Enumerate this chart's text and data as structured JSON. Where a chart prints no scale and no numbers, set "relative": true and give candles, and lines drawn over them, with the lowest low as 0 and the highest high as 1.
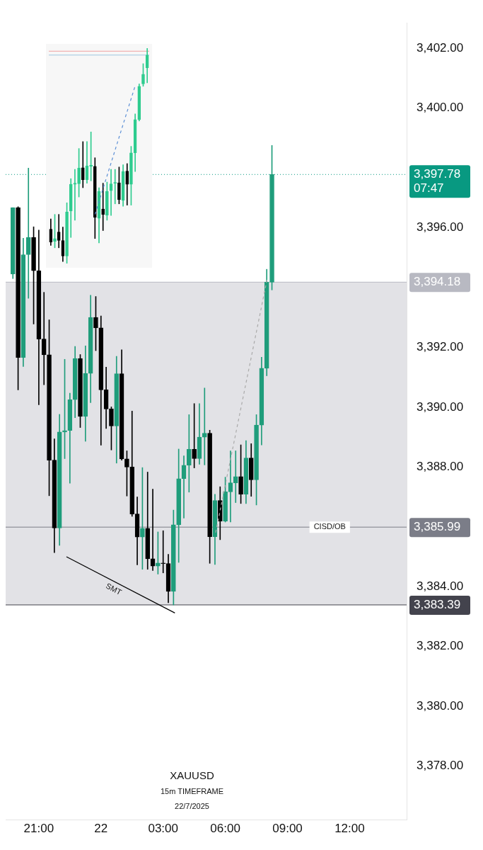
{
  "chart_data": [
    {
      "type": "candlestick",
      "title": "XAUUSD",
      "subtitle": "15m TIMEFRAME",
      "colors": [
        "#1f9d7b",
        "#000000",
        "#1f9d7b",
        "#1f9d7b",
        "#000000",
        "#000000",
        "#000000",
        "#000000",
        "#000000",
        "#1f9d7b",
        "#1f9d7b",
        "#1f9d7b",
        "#1f9d7b",
        "#000000",
        "#1f9d7b",
        "#1f9d7b",
        "#000000",
        "#000000",
        "#000000",
        "#000000",
        "#1f9d7b",
        "#000000",
        "#000000",
        "#000000",
        "#000000",
        "#1f9d7b",
        "#000000",
        "#000000",
        "#1f9d7b",
        "#000000",
        "#000000",
        "#1f9d7b",
        "#1f9d7b",
        "#1f9d7b",
        "#1f9d7b",
        "#000000",
        "#1f9d7b",
        "#1f9d7b",
        "#000000",
        "#1f9d7b",
        "#000000",
        "#1f9d7b",
        "#1f9d7b",
        "#1f9d7b",
        "#000000",
        "#1f9d7b",
        "#000000",
        "#1f9d7b",
        "#1f9d7b",
        "#1f9d7b",
        "#1f9d7b"
      ],
      "x": [
        "2025-07-21T19:45",
        "2025-07-21T20:00",
        "2025-07-21T20:15",
        "2025-07-21T20:30",
        "2025-07-21T20:45",
        "2025-07-21T21:00",
        "2025-07-21T21:15",
        "2025-07-21T21:30",
        "2025-07-21T21:45",
        "2025-07-21T22:00",
        "2025-07-21T22:15",
        "2025-07-21T22:30",
        "2025-07-21T22:45",
        "2025-07-21T23:00",
        "2025-07-21T23:15",
        "2025-07-21T23:30",
        "2025-07-21T23:45",
        "2025-07-22T00:00",
        "2025-07-22T00:15",
        "2025-07-22T00:30",
        "2025-07-22T00:45",
        "2025-07-22T01:00",
        "2025-07-22T01:15",
        "2025-07-22T01:30",
        "2025-07-22T01:45",
        "2025-07-22T02:00",
        "2025-07-22T02:15",
        "2025-07-22T02:30",
        "2025-07-22T02:45",
        "2025-07-22T03:00",
        "2025-07-22T03:15",
        "2025-07-22T03:30",
        "2025-07-22T03:45",
        "2025-07-22T04:00",
        "2025-07-22T04:15",
        "2025-07-22T04:30",
        "2025-07-22T04:45",
        "2025-07-22T05:00",
        "2025-07-22T05:15",
        "2025-07-22T05:30",
        "2025-07-22T05:45",
        "2025-07-22T06:00",
        "2025-07-22T06:15",
        "2025-07-22T06:30",
        "2025-07-22T06:45",
        "2025-07-22T07:00",
        "2025-07-22T07:15",
        "2025-07-22T07:30",
        "2025-07-22T07:45",
        "2025-07-22T08:00",
        "2025-07-22T08:15"
      ],
      "ohlc": [
        [
          3394.45,
          3396.67,
          3394.3,
          3396.67
        ],
        [
          3396.67,
          3396.7,
          3390.58,
          3391.66
        ],
        [
          3391.66,
          3395.65,
          3391.36,
          3395.1
        ],
        [
          3395.1,
          3397.99,
          3393.64,
          3395.68
        ],
        [
          3395.68,
          3396.03,
          3392.78,
          3394.56
        ],
        [
          3394.56,
          3395.92,
          3390.08,
          3392.28
        ],
        [
          3392.28,
          3393.84,
          3390.75,
          3391.75
        ],
        [
          3391.75,
          3392.92,
          3387.04,
          3388.23
        ],
        [
          3388.23,
          3388.94,
          3385.14,
          3385.96
        ],
        [
          3385.96,
          3389.76,
          3385.38,
          3389.17
        ],
        [
          3389.17,
          3391.6,
          3388.28,
          3389.22
        ],
        [
          3389.22,
          3390.47,
          3387.46,
          3390.25
        ],
        [
          3390.25,
          3392.03,
          3389.65,
          3391.63
        ],
        [
          3391.63,
          3391.76,
          3389.32,
          3389.69
        ],
        [
          3389.69,
          3392.05,
          3388.86,
          3391.13
        ],
        [
          3391.13,
          3393.74,
          3390.15,
          3393.0
        ],
        [
          3393.0,
          3393.7,
          3391.89,
          3392.65
        ],
        [
          3392.65,
          3393.05,
          3388.73,
          3390.58
        ],
        [
          3390.58,
          3391.34,
          3389.29,
          3389.94
        ],
        [
          3389.94,
          3390.01,
          3388.57,
          3389.37
        ],
        [
          3389.37,
          3391.7,
          3388.13,
          3391.12
        ],
        [
          3391.12,
          3391.92,
          3388.23,
          3388.27
        ],
        [
          3388.27,
          3388.54,
          3387.03,
          3388.0
        ],
        [
          3388.0,
          3389.87,
          3386.35,
          3386.43
        ],
        [
          3386.43,
          3387.0,
          3384.73,
          3385.66
        ],
        [
          3385.66,
          3387.98,
          3384.58,
          3385.95
        ],
        [
          3385.95,
          3387.83,
          3384.58,
          3384.93
        ],
        [
          3384.93,
          3387.26,
          3384.54,
          3384.69
        ],
        [
          3384.69,
          3385.83,
          3384.42,
          3384.79
        ],
        [
          3384.79,
          3385.87,
          3384.46,
          3384.77
        ],
        [
          3384.77,
          3385.08,
          3383.46,
          3383.84
        ],
        [
          3383.84,
          3386.56,
          3383.39,
          3386.07
        ],
        [
          3386.07,
          3388.6,
          3384.81,
          3387.61
        ],
        [
          3387.61,
          3388.37,
          3386.29,
          3388.06
        ],
        [
          3388.06,
          3389.75,
          3387.16,
          3388.59
        ],
        [
          3388.59,
          3390.12,
          3387.97,
          3388.28
        ],
        [
          3388.28,
          3390.12,
          3388.09,
          3389.0
        ],
        [
          3389.0,
          3390.64,
          3388.07,
          3389.13
        ],
        [
          3389.13,
          3389.23,
          3384.78,
          3385.67
        ],
        [
          3385.67,
          3387.09,
          3384.74,
          3386.88
        ],
        [
          3386.88,
          3387.34,
          3385.57,
          3386.19
        ],
        [
          3386.19,
          3387.66,
          3386.16,
          3387.17
        ],
        [
          3387.17,
          3388.54,
          3386.16,
          3387.47
        ],
        [
          3387.47,
          3388.54,
          3386.81,
          3387.68
        ],
        [
          3387.68,
          3388.74,
          3386.78,
          3387.09
        ],
        [
          3387.09,
          3388.88,
          3386.78,
          3388.3
        ],
        [
          3388.3,
          3388.78,
          3387.02,
          3387.57
        ],
        [
          3387.57,
          3389.75,
          3386.73,
          3389.4
        ],
        [
          3389.4,
          3391.67,
          3388.74,
          3391.3
        ],
        [
          3391.3,
          3394.61,
          3391.05,
          3394.18
        ],
        [
          3394.18,
          3398.75,
          3393.92,
          3397.78
        ]
      ],
      "series": [
        {
          "type": "line",
          "name": "SMT",
          "color": "#000000",
          "line_style": "solid",
          "x": [
            "2025-07-21T22:20",
            "2025-07-22T03:34"
          ],
          "values": [
            3385.0,
            3383.12
          ]
        },
        {
          "type": "line",
          "color": "#aaaaaa",
          "line_style": "dashed",
          "x": [
            "2025-07-22T05:32",
            "2025-07-22T08:01"
          ],
          "values": [
            3385.81,
            3394.28
          ]
        }
      ],
      "xlim": [
        "2025-07-21T19:24",
        "2025-07-22T14:45"
      ],
      "ylim": [
        3376.2,
        3402.85
      ],
      "xticks": [
        {
          "value": "2025-07-21T21:00",
          "label": "21:00"
        },
        {
          "value": "2025-07-22T00:00",
          "label": "22"
        },
        {
          "value": "2025-07-22T03:00",
          "label": "03:00"
        },
        {
          "value": "2025-07-22T06:00",
          "label": "06:00"
        },
        {
          "value": "2025-07-22T09:00",
          "label": "09:00"
        },
        {
          "value": "2025-07-22T12:00",
          "label": "12:00"
        }
      ],
      "yticks": [
        {
          "value": 3378,
          "label": "3,378.00"
        },
        {
          "value": 3380,
          "label": "3,380.00"
        },
        {
          "value": 3382,
          "label": "3,382.00"
        },
        {
          "value": 3384,
          "label": "3,384.00"
        },
        {
          "value": 3388,
          "label": "3,388.00"
        },
        {
          "value": 3390,
          "label": "3,390.00"
        },
        {
          "value": 3392,
          "label": "3,392.00"
        },
        {
          "value": 3396,
          "label": "3,396.00"
        },
        {
          "value": 3400,
          "label": "3,400.00"
        },
        {
          "value": 3402,
          "label": "3,402.00"
        }
      ],
      "bands": [
        {
          "axis": "y",
          "from": 3383.39,
          "to": 3394.18,
          "color": "#e2e2e6"
        }
      ],
      "ref_lines": [
        {
          "axis": "y",
          "value": 3397.78,
          "label": "3,397.78\n07:47",
          "color": "#089981",
          "line_style": "dotted"
        },
        {
          "axis": "y",
          "value": 3394.18,
          "label": "3,394.18",
          "color": "#b8b9c2",
          "line_style": "solid"
        },
        {
          "axis": "y",
          "value": 3385.99,
          "label": "3,385.99",
          "color": "#7b7d88",
          "line_style": "solid"
        },
        {
          "axis": "y",
          "value": 3383.39,
          "label": "3,383.39",
          "color": "#43434d",
          "line_style": "solid"
        }
      ],
      "annotations": [
        {
          "text": "CISD/OB",
          "x": "2025-07-22T10:16",
          "y": 3385.99
        },
        "22/7/2025"
      ],
      "grid": false,
      "legend": false,
      "marker": "none"
    },
    {
      "type": "candlestick",
      "relative": true,
      "colors": [
        "#000000",
        "#2ecc8f",
        "#000000",
        "#000000",
        "#2ecc8f",
        "#2ecc8f",
        "#2ecc8f",
        "#2ecc8f",
        "#000000",
        "#2ecc8f",
        "#2ecc8f",
        "#000000",
        "#2ecc8f",
        "#000000",
        "#2ecc8f",
        "#2ecc8f",
        "#2ecc8f",
        "#000000",
        "#2ecc8f",
        "#000000",
        "#2ecc8f",
        "#2ecc8f",
        "#2ecc8f",
        "#2ecc8f",
        "#2ecc8f"
      ],
      "categories": [
        null,
        null,
        null,
        null,
        null,
        null,
        null,
        null,
        null,
        null,
        null,
        null,
        null,
        null,
        null,
        null,
        null,
        null,
        null,
        null,
        null,
        null,
        null,
        null,
        null
      ],
      "ohlc": [
        [
          0.159,
          0.207,
          0.084,
          0.1
        ],
        [
          0.103,
          0.228,
          0.073,
          0.116
        ],
        [
          0.146,
          0.228,
          0.073,
          0.107
        ],
        [
          0.107,
          0.169,
          0.009,
          0.035
        ],
        [
          0.035,
          0.282,
          0,
          0.239
        ],
        [
          0.244,
          0.394,
          0.121,
          0.368
        ],
        [
          0.368,
          0.437,
          0.201,
          0.373
        ],
        [
          0.37,
          0.534,
          0.309,
          0.443
        ],
        [
          0.445,
          0.566,
          0.352,
          0.389
        ],
        [
          0.389,
          0.566,
          0.373,
          0.453
        ],
        [
          0.451,
          0.611,
          0.384,
          0.456
        ],
        [
          0.451,
          0.491,
          0.116,
          0.214
        ],
        [
          0.21,
          0.352,
          0.096,
          0.335
        ],
        [
          0.253,
          0.373,
          0.153,
          0.228
        ],
        [
          0.225,
          0.378,
          0.201,
          0.335
        ],
        [
          0.338,
          0.437,
          0.223,
          0.37
        ],
        [
          0.373,
          0.437,
          0.277,
          0.376
        ],
        [
          0.375,
          0.448,
          0.277,
          0.296
        ],
        [
          0.293,
          0.459,
          0.266,
          0.427
        ],
        [
          0.429,
          0.464,
          0.271,
          0.368
        ],
        [
          0.368,
          0.544,
          0.271,
          0.514
        ],
        [
          0.514,
          0.695,
          0.427,
          0.668
        ],
        [
          0.668,
          0.834,
          0.662,
          0.823
        ],
        [
          0.834,
          0.928,
          0.823,
          0.879
        ],
        [
          0.909,
          1,
          0.839,
          0.968
        ]
      ],
      "series": [
        {
          "type": "line",
          "color": "#5b8fd6",
          "line_style": "dashed",
          "values": [
            null,
            null,
            null,
            null,
            null,
            null,
            null,
            null,
            null,
            null,
            null,
            0.228,
            null,
            null,
            null,
            null,
            null,
            null,
            null,
            null,
            null,
            0.825,
            null,
            null,
            null
          ]
        }
      ],
      "ref_lines": [
        {
          "axis": "y",
          "value": 0.986,
          "color": "#f0a0a0",
          "line_style": "solid"
        },
        {
          "axis": "y",
          "value": 0.968,
          "color": "#a0c8e0",
          "line_style": "solid"
        }
      ],
      "grid": false,
      "legend": false,
      "marker": "none"
    }
  ]
}
